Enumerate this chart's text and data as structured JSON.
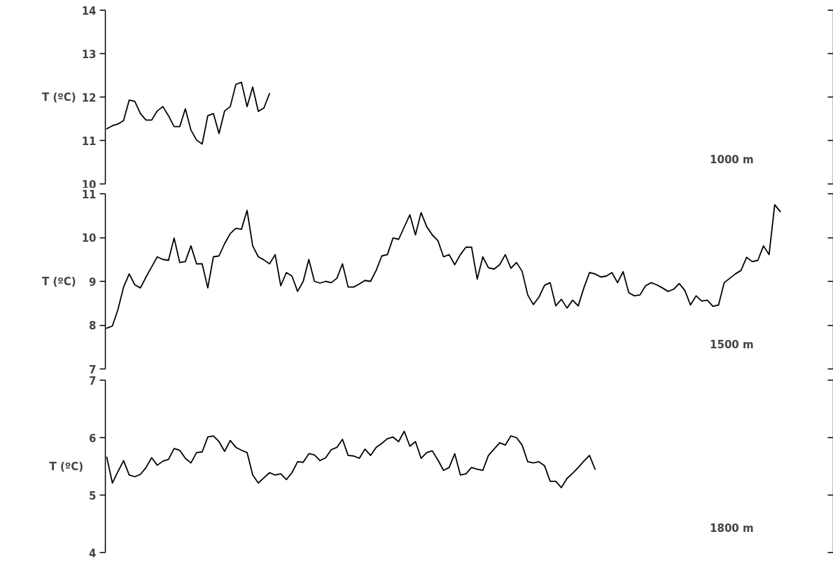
{
  "chart_data": [
    {
      "type": "line",
      "ylabel": "T (ºC)",
      "color": "#000000",
      "ylim": [
        10,
        14
      ],
      "yticks": [
        10,
        11,
        12,
        13,
        14
      ],
      "annotations": [
        "1000 m"
      ],
      "categories": [
        null,
        null,
        null,
        null,
        null,
        null,
        null,
        null,
        null,
        null,
        null,
        null,
        null,
        null,
        null,
        null,
        null,
        null,
        null,
        null,
        null,
        null,
        null,
        null,
        null,
        null,
        null,
        null,
        null,
        null
      ],
      "values": [
        11.27,
        11.34,
        11.38,
        11.46,
        11.93,
        11.9,
        11.62,
        11.47,
        11.47,
        11.68,
        11.78,
        11.57,
        11.32,
        11.32,
        11.73,
        11.24,
        11.01,
        10.92,
        11.57,
        11.62,
        11.16,
        11.68,
        11.78,
        12.29,
        12.34,
        11.78,
        12.23,
        11.67,
        11.75,
        12.08
      ]
    },
    {
      "type": "line",
      "ylabel": "T (ºC)",
      "color": "#000000",
      "ylim": [
        7,
        11
      ],
      "yticks": [
        7,
        8,
        9,
        10,
        11
      ],
      "annotations": [
        "1500 m"
      ],
      "categories": [
        null,
        null,
        null,
        null,
        null,
        null,
        null,
        null,
        null,
        null,
        null,
        null,
        null,
        null,
        null,
        null,
        null,
        null,
        null,
        null,
        null,
        null,
        null,
        null,
        null,
        null,
        null,
        null,
        null,
        null,
        null,
        null,
        null,
        null,
        null,
        null,
        null,
        null,
        null,
        null,
        null,
        null,
        null,
        null,
        null,
        null,
        null,
        null,
        null,
        null,
        null,
        null,
        null,
        null,
        null,
        null,
        null,
        null,
        null,
        null,
        null,
        null,
        null,
        null,
        null,
        null,
        null,
        null,
        null,
        null,
        null,
        null,
        null,
        null,
        null,
        null,
        null,
        null,
        null,
        null,
        null,
        null,
        null,
        null,
        null,
        null,
        null,
        null,
        null,
        null,
        null,
        null,
        null,
        null,
        null,
        null,
        null,
        null,
        null,
        null,
        null,
        null,
        null,
        null,
        null,
        null,
        null,
        null,
        null,
        null,
        null,
        null,
        null,
        null,
        null,
        null,
        null,
        null,
        null,
        null,
        null
      ],
      "values": [
        7.93,
        7.98,
        8.36,
        8.87,
        9.17,
        8.92,
        8.85,
        9.1,
        9.33,
        9.56,
        9.5,
        9.48,
        9.99,
        9.43,
        9.45,
        9.81,
        9.4,
        9.4,
        8.85,
        9.56,
        9.58,
        9.86,
        10.09,
        10.21,
        10.19,
        10.62,
        9.81,
        9.56,
        9.49,
        9.4,
        9.61,
        8.9,
        9.2,
        9.12,
        8.77,
        9.0,
        9.5,
        9.0,
        8.96,
        9.0,
        8.97,
        9.07,
        9.4,
        8.87,
        8.87,
        8.94,
        9.02,
        9.0,
        9.25,
        9.58,
        9.61,
        9.99,
        9.96,
        10.24,
        10.52,
        10.06,
        10.57,
        10.25,
        10.06,
        9.93,
        9.56,
        9.61,
        9.38,
        9.61,
        9.78,
        9.78,
        9.05,
        9.56,
        9.31,
        9.28,
        9.38,
        9.61,
        9.3,
        9.43,
        9.23,
        8.69,
        8.47,
        8.64,
        8.91,
        8.97,
        8.44,
        8.59,
        8.39,
        8.57,
        8.44,
        8.85,
        9.2,
        9.17,
        9.1,
        9.12,
        9.2,
        8.97,
        9.22,
        8.74,
        8.67,
        8.69,
        8.9,
        8.97,
        8.92,
        8.85,
        8.77,
        8.82,
        8.95,
        8.79,
        8.46,
        8.67,
        8.55,
        8.57,
        8.43,
        8.46,
        8.97,
        9.07,
        9.17,
        9.25,
        9.55,
        9.45,
        9.48,
        9.81,
        9.61,
        10.75,
        10.59
      ]
    },
    {
      "type": "line",
      "ylabel": "T (ºC)",
      "color": "#000000",
      "ylim": [
        4,
        7
      ],
      "yticks": [
        4,
        5,
        6,
        7
      ],
      "annotations": [
        "1800 m"
      ],
      "categories": [
        null,
        null,
        null,
        null,
        null,
        null,
        null,
        null,
        null,
        null,
        null,
        null,
        null,
        null,
        null,
        null,
        null,
        null,
        null,
        null,
        null,
        null,
        null,
        null,
        null,
        null,
        null,
        null,
        null,
        null,
        null,
        null,
        null,
        null,
        null,
        null,
        null,
        null,
        null,
        null,
        null,
        null,
        null,
        null,
        null,
        null,
        null,
        null,
        null,
        null,
        null,
        null,
        null,
        null,
        null,
        null,
        null,
        null,
        null,
        null,
        null,
        null,
        null,
        null,
        null,
        null,
        null,
        null,
        null,
        null,
        null,
        null,
        null,
        null,
        null,
        null,
        null,
        null,
        null,
        null,
        null,
        null,
        null,
        null,
        null,
        null,
        null,
        null
      ],
      "values": [
        5.66,
        5.21,
        5.41,
        5.6,
        5.35,
        5.32,
        5.36,
        5.48,
        5.65,
        5.52,
        5.59,
        5.62,
        5.81,
        5.78,
        5.64,
        5.56,
        5.74,
        5.75,
        6.01,
        6.03,
        5.93,
        5.76,
        5.95,
        5.83,
        5.78,
        5.74,
        5.35,
        5.21,
        5.3,
        5.39,
        5.35,
        5.37,
        5.27,
        5.39,
        5.58,
        5.57,
        5.72,
        5.7,
        5.6,
        5.65,
        5.79,
        5.83,
        5.97,
        5.69,
        5.68,
        5.64,
        5.8,
        5.69,
        5.83,
        5.9,
        5.98,
        6.01,
        5.93,
        6.11,
        5.85,
        5.93,
        5.64,
        5.74,
        5.77,
        5.61,
        5.43,
        5.48,
        5.72,
        5.35,
        5.37,
        5.48,
        5.45,
        5.43,
        5.69,
        5.8,
        5.91,
        5.87,
        6.03,
        6.0,
        5.87,
        5.58,
        5.56,
        5.58,
        5.51,
        5.24,
        5.24,
        5.13,
        5.29,
        5.38,
        5.48,
        5.59,
        5.69,
        5.45
      ]
    }
  ]
}
